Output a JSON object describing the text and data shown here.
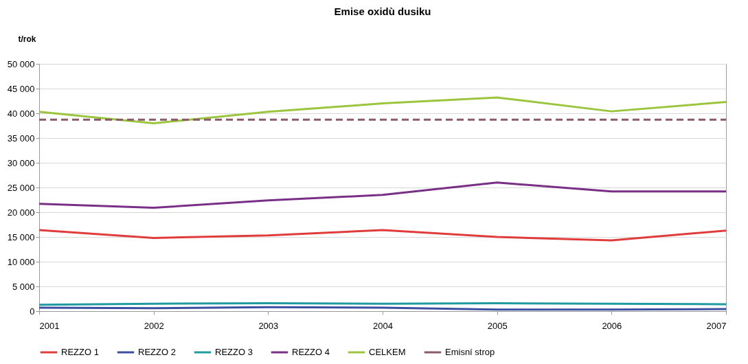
{
  "chart_data": {
    "type": "line",
    "title": "Emise oxidù dusiku",
    "ylabel": "t/rok",
    "categories": [
      "2001",
      "2002",
      "2003",
      "2004",
      "2005",
      "2006",
      "2007"
    ],
    "series": [
      {
        "name": "REZZO 1",
        "color": "#e03c3c",
        "values": [
          16400,
          14800,
          15300,
          16400,
          15000,
          14300,
          16300
        ]
      },
      {
        "name": "REZZO 2",
        "color": "#3b4fa0",
        "values": [
          700,
          600,
          800,
          700,
          300,
          300,
          400
        ]
      },
      {
        "name": "REZZO 3",
        "color": "#1f9aa0",
        "values": [
          1300,
          1500,
          1600,
          1500,
          1600,
          1500,
          1400
        ]
      },
      {
        "name": "REZZO 4",
        "color": "#7a2f86",
        "values": [
          21700,
          20900,
          22400,
          23500,
          26000,
          24200,
          24200
        ]
      },
      {
        "name": "CELKEM",
        "color": "#9bc53d",
        "values": [
          40300,
          38000,
          40300,
          42000,
          43200,
          40400,
          42300
        ]
      },
      {
        "name": "Emisní strop",
        "color": "#8a5a6a",
        "line_style": "dashed",
        "values": [
          38700,
          38700,
          38700,
          38700,
          38700,
          38700,
          38700
        ]
      }
    ],
    "ylim": [
      0,
      50000
    ],
    "yticks": [
      0,
      {
        "value": 5000,
        "label": "5 000"
      },
      {
        "value": 10000,
        "label": "10 000"
      },
      {
        "value": 15000,
        "label": "15 000"
      },
      {
        "value": 20000,
        "label": "20 000"
      },
      {
        "value": 25000,
        "label": "25 000"
      },
      {
        "value": 30000,
        "label": "30 000"
      },
      {
        "value": 35000,
        "label": "35 000"
      },
      {
        "value": 40000,
        "label": "40 000"
      },
      {
        "value": 45000,
        "label": "45 000"
      },
      {
        "value": 50000,
        "label": "50 000"
      }
    ],
    "grid": "y",
    "legend": "bottom",
    "marker": "none",
    "line_style": "solid"
  }
}
